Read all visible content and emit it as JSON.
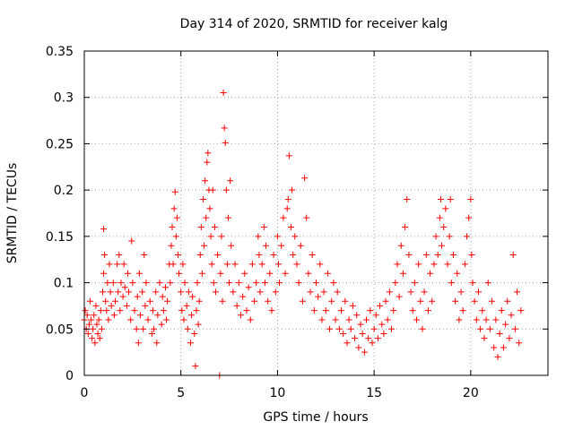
{
  "chart_data": {
    "type": "scatter",
    "title": "Day 314 of 2020, SRMTID for receiver kalg",
    "xlabel": "GPS time / hours",
    "ylabel": "SRMTID / TECUs",
    "xlim": [
      0,
      24
    ],
    "ylim": [
      0,
      0.35
    ],
    "xticks": [
      0,
      5,
      10,
      15,
      20
    ],
    "xtick_labels": [
      "0",
      "5",
      "10",
      "15",
      "20"
    ],
    "yticks": [
      0,
      0.05,
      0.1,
      0.15,
      0.2,
      0.25,
      0.3,
      0.35
    ],
    "ytick_labels": [
      "0",
      "0.05",
      "0.1",
      "0.15",
      "0.2",
      "0.25",
      "0.3",
      "0.35"
    ],
    "grid": true,
    "marker": "+",
    "color": "#ff0000",
    "series": [
      {
        "name": "SRMTID",
        "points": [
          [
            0.0,
            0.06
          ],
          [
            0.05,
            0.07
          ],
          [
            0.1,
            0.05
          ],
          [
            0.15,
            0.065
          ],
          [
            0.2,
            0.045
          ],
          [
            0.25,
            0.055
          ],
          [
            0.3,
            0.08
          ],
          [
            0.35,
            0.06
          ],
          [
            0.4,
            0.04
          ],
          [
            0.45,
            0.05
          ],
          [
            0.5,
            0.065
          ],
          [
            0.55,
            0.035
          ],
          [
            0.6,
            0.075
          ],
          [
            0.65,
            0.055
          ],
          [
            0.7,
            0.045
          ],
          [
            0.75,
            0.06
          ],
          [
            0.8,
            0.04
          ],
          [
            0.85,
            0.07
          ],
          [
            0.9,
            0.05
          ],
          [
            0.95,
            0.09
          ],
          [
            1.0,
            0.11
          ],
          [
            1.0,
            0.158
          ],
          [
            1.05,
            0.13
          ],
          [
            1.1,
            0.08
          ],
          [
            1.15,
            0.07
          ],
          [
            1.2,
            0.1
          ],
          [
            1.25,
            0.06
          ],
          [
            1.3,
            0.12
          ],
          [
            1.35,
            0.09
          ],
          [
            1.4,
            0.075
          ],
          [
            1.5,
            0.1
          ],
          [
            1.55,
            0.065
          ],
          [
            1.6,
            0.08
          ],
          [
            1.7,
            0.12
          ],
          [
            1.75,
            0.09
          ],
          [
            1.8,
            0.13
          ],
          [
            1.85,
            0.07
          ],
          [
            1.9,
            0.1
          ],
          [
            2.0,
            0.085
          ],
          [
            2.05,
            0.12
          ],
          [
            2.1,
            0.095
          ],
          [
            2.2,
            0.075
          ],
          [
            2.25,
            0.11
          ],
          [
            2.3,
            0.09
          ],
          [
            2.4,
            0.06
          ],
          [
            2.45,
            0.145
          ],
          [
            2.5,
            0.1
          ],
          [
            2.6,
            0.07
          ],
          [
            2.7,
            0.05
          ],
          [
            2.75,
            0.085
          ],
          [
            2.8,
            0.035
          ],
          [
            2.85,
            0.11
          ],
          [
            2.9,
            0.065
          ],
          [
            3.0,
            0.09
          ],
          [
            3.05,
            0.05
          ],
          [
            3.1,
            0.13
          ],
          [
            3.15,
            0.075
          ],
          [
            3.2,
            0.1
          ],
          [
            3.3,
            0.06
          ],
          [
            3.4,
            0.08
          ],
          [
            3.5,
            0.045
          ],
          [
            3.55,
            0.07
          ],
          [
            3.6,
            0.05
          ],
          [
            3.7,
            0.09
          ],
          [
            3.75,
            0.035
          ],
          [
            3.8,
            0.065
          ],
          [
            3.9,
            0.1
          ],
          [
            4.0,
            0.055
          ],
          [
            4.05,
            0.085
          ],
          [
            4.1,
            0.07
          ],
          [
            4.2,
            0.095
          ],
          [
            4.25,
            0.06
          ],
          [
            4.3,
            0.08
          ],
          [
            4.4,
            0.12
          ],
          [
            4.45,
            0.1
          ],
          [
            4.5,
            0.14
          ],
          [
            4.55,
            0.16
          ],
          [
            4.6,
            0.12
          ],
          [
            4.65,
            0.18
          ],
          [
            4.7,
            0.198
          ],
          [
            4.75,
            0.15
          ],
          [
            4.8,
            0.17
          ],
          [
            4.85,
            0.13
          ],
          [
            4.9,
            0.11
          ],
          [
            5.0,
            0.09
          ],
          [
            5.05,
            0.07
          ],
          [
            5.1,
            0.12
          ],
          [
            5.15,
            0.06
          ],
          [
            5.2,
            0.1
          ],
          [
            5.3,
            0.075
          ],
          [
            5.35,
            0.05
          ],
          [
            5.4,
            0.09
          ],
          [
            5.5,
            0.035
          ],
          [
            5.55,
            0.065
          ],
          [
            5.6,
            0.085
          ],
          [
            5.7,
            0.045
          ],
          [
            5.75,
            0.01
          ],
          [
            5.8,
            0.07
          ],
          [
            5.85,
            0.1
          ],
          [
            5.9,
            0.055
          ],
          [
            5.95,
            0.08
          ],
          [
            6.0,
            0.13
          ],
          [
            6.05,
            0.16
          ],
          [
            6.1,
            0.11
          ],
          [
            6.15,
            0.19
          ],
          [
            6.2,
            0.14
          ],
          [
            6.25,
            0.21
          ],
          [
            6.3,
            0.17
          ],
          [
            6.35,
            0.23
          ],
          [
            6.4,
            0.24
          ],
          [
            6.45,
            0.2
          ],
          [
            6.5,
            0.18
          ],
          [
            6.55,
            0.15
          ],
          [
            6.6,
            0.12
          ],
          [
            6.65,
            0.2
          ],
          [
            6.7,
            0.1
          ],
          [
            6.75,
            0.16
          ],
          [
            6.8,
            0.09
          ],
          [
            6.9,
            0.13
          ],
          [
            7.0,
            0.0
          ],
          [
            7.05,
            0.11
          ],
          [
            7.1,
            0.15
          ],
          [
            7.15,
            0.08
          ],
          [
            7.2,
            0.305
          ],
          [
            7.25,
            0.267
          ],
          [
            7.3,
            0.251
          ],
          [
            7.35,
            0.2
          ],
          [
            7.4,
            0.12
          ],
          [
            7.45,
            0.17
          ],
          [
            7.5,
            0.1
          ],
          [
            7.55,
            0.21
          ],
          [
            7.6,
            0.14
          ],
          [
            7.7,
            0.09
          ],
          [
            7.8,
            0.12
          ],
          [
            7.9,
            0.075
          ],
          [
            8.0,
            0.1
          ],
          [
            8.1,
            0.065
          ],
          [
            8.2,
            0.085
          ],
          [
            8.3,
            0.11
          ],
          [
            8.4,
            0.07
          ],
          [
            8.5,
            0.095
          ],
          [
            8.6,
            0.06
          ],
          [
            8.7,
            0.12
          ],
          [
            8.8,
            0.08
          ],
          [
            8.9,
            0.1
          ],
          [
            9.0,
            0.15
          ],
          [
            9.05,
            0.13
          ],
          [
            9.1,
            0.09
          ],
          [
            9.2,
            0.12
          ],
          [
            9.3,
            0.16
          ],
          [
            9.35,
            0.1
          ],
          [
            9.4,
            0.14
          ],
          [
            9.5,
            0.08
          ],
          [
            9.6,
            0.11
          ],
          [
            9.7,
            0.07
          ],
          [
            9.8,
            0.13
          ],
          [
            9.9,
            0.09
          ],
          [
            10.0,
            0.15
          ],
          [
            10.05,
            0.12
          ],
          [
            10.1,
            0.1
          ],
          [
            10.2,
            0.14
          ],
          [
            10.3,
            0.17
          ],
          [
            10.4,
            0.11
          ],
          [
            10.5,
            0.18
          ],
          [
            10.55,
            0.19
          ],
          [
            10.6,
            0.237
          ],
          [
            10.7,
            0.16
          ],
          [
            10.75,
            0.2
          ],
          [
            10.8,
            0.13
          ],
          [
            10.9,
            0.15
          ],
          [
            11.0,
            0.12
          ],
          [
            11.1,
            0.1
          ],
          [
            11.2,
            0.14
          ],
          [
            11.3,
            0.08
          ],
          [
            11.4,
            0.213
          ],
          [
            11.5,
            0.17
          ],
          [
            11.6,
            0.11
          ],
          [
            11.7,
            0.09
          ],
          [
            11.8,
            0.13
          ],
          [
            11.9,
            0.07
          ],
          [
            12.0,
            0.1
          ],
          [
            12.1,
            0.085
          ],
          [
            12.2,
            0.12
          ],
          [
            12.3,
            0.06
          ],
          [
            12.4,
            0.09
          ],
          [
            12.5,
            0.07
          ],
          [
            12.6,
            0.11
          ],
          [
            12.7,
            0.05
          ],
          [
            12.8,
            0.08
          ],
          [
            12.9,
            0.1
          ],
          [
            13.0,
            0.06
          ],
          [
            13.1,
            0.09
          ],
          [
            13.2,
            0.05
          ],
          [
            13.3,
            0.07
          ],
          [
            13.4,
            0.045
          ],
          [
            13.5,
            0.08
          ],
          [
            13.6,
            0.035
          ],
          [
            13.7,
            0.06
          ],
          [
            13.8,
            0.05
          ],
          [
            13.9,
            0.075
          ],
          [
            14.0,
            0.04
          ],
          [
            14.1,
            0.065
          ],
          [
            14.2,
            0.03
          ],
          [
            14.3,
            0.055
          ],
          [
            14.4,
            0.045
          ],
          [
            14.5,
            0.025
          ],
          [
            14.6,
            0.06
          ],
          [
            14.7,
            0.04
          ],
          [
            14.8,
            0.07
          ],
          [
            14.9,
            0.035
          ],
          [
            15.0,
            0.05
          ],
          [
            15.1,
            0.065
          ],
          [
            15.2,
            0.04
          ],
          [
            15.3,
            0.075
          ],
          [
            15.4,
            0.055
          ],
          [
            15.5,
            0.045
          ],
          [
            15.6,
            0.08
          ],
          [
            15.7,
            0.06
          ],
          [
            15.8,
            0.09
          ],
          [
            15.9,
            0.05
          ],
          [
            16.0,
            0.07
          ],
          [
            16.1,
            0.1
          ],
          [
            16.2,
            0.12
          ],
          [
            16.3,
            0.085
          ],
          [
            16.4,
            0.14
          ],
          [
            16.5,
            0.11
          ],
          [
            16.6,
            0.16
          ],
          [
            16.7,
            0.19
          ],
          [
            16.8,
            0.13
          ],
          [
            16.9,
            0.09
          ],
          [
            17.0,
            0.07
          ],
          [
            17.1,
            0.1
          ],
          [
            17.2,
            0.06
          ],
          [
            17.3,
            0.12
          ],
          [
            17.4,
            0.08
          ],
          [
            17.5,
            0.05
          ],
          [
            17.6,
            0.09
          ],
          [
            17.7,
            0.13
          ],
          [
            17.8,
            0.07
          ],
          [
            17.9,
            0.11
          ],
          [
            18.0,
            0.08
          ],
          [
            18.1,
            0.12
          ],
          [
            18.2,
            0.15
          ],
          [
            18.3,
            0.13
          ],
          [
            18.4,
            0.17
          ],
          [
            18.45,
            0.19
          ],
          [
            18.5,
            0.14
          ],
          [
            18.6,
            0.16
          ],
          [
            18.7,
            0.18
          ],
          [
            18.8,
            0.12
          ],
          [
            18.9,
            0.15
          ],
          [
            18.95,
            0.19
          ],
          [
            19.0,
            0.1
          ],
          [
            19.1,
            0.13
          ],
          [
            19.2,
            0.08
          ],
          [
            19.3,
            0.11
          ],
          [
            19.4,
            0.06
          ],
          [
            19.5,
            0.09
          ],
          [
            19.6,
            0.07
          ],
          [
            19.7,
            0.12
          ],
          [
            19.8,
            0.15
          ],
          [
            19.9,
            0.17
          ],
          [
            20.0,
            0.19
          ],
          [
            20.05,
            0.13
          ],
          [
            20.1,
            0.1
          ],
          [
            20.2,
            0.08
          ],
          [
            20.3,
            0.06
          ],
          [
            20.4,
            0.09
          ],
          [
            20.5,
            0.05
          ],
          [
            20.6,
            0.07
          ],
          [
            20.7,
            0.04
          ],
          [
            20.8,
            0.06
          ],
          [
            20.9,
            0.1
          ],
          [
            21.0,
            0.05
          ],
          [
            21.1,
            0.08
          ],
          [
            21.2,
            0.03
          ],
          [
            21.3,
            0.06
          ],
          [
            21.4,
            0.02
          ],
          [
            21.5,
            0.045
          ],
          [
            21.6,
            0.07
          ],
          [
            21.7,
            0.03
          ],
          [
            21.8,
            0.055
          ],
          [
            21.9,
            0.08
          ],
          [
            22.0,
            0.04
          ],
          [
            22.1,
            0.065
          ],
          [
            22.2,
            0.13
          ],
          [
            22.3,
            0.05
          ],
          [
            22.4,
            0.09
          ],
          [
            22.5,
            0.035
          ],
          [
            22.6,
            0.07
          ]
        ]
      }
    ]
  }
}
